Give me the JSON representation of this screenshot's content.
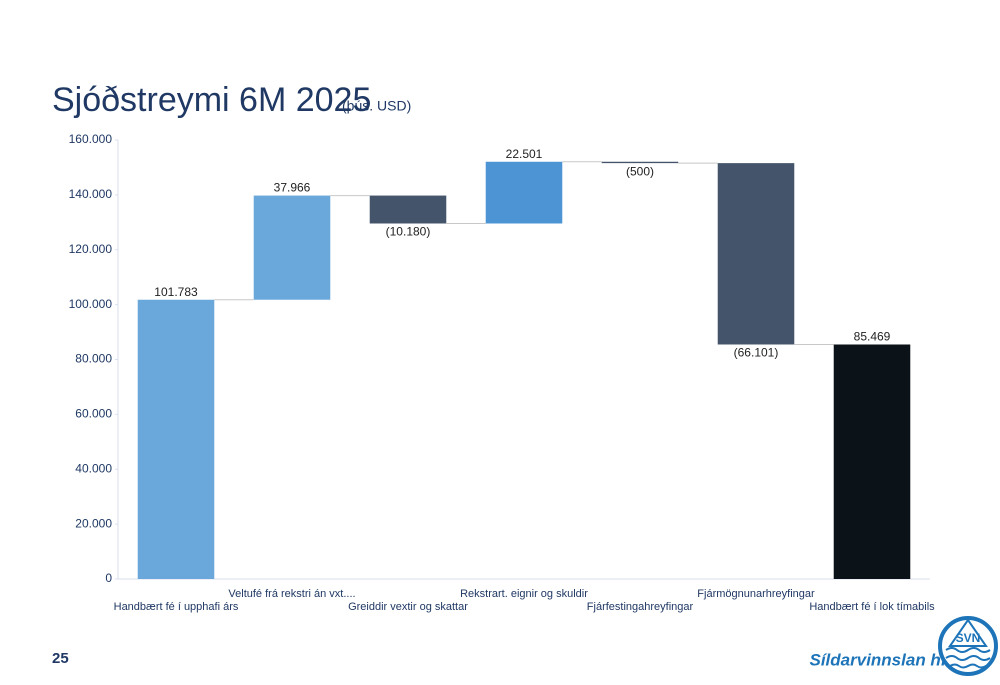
{
  "chart_data": {
    "type": "waterfall",
    "title": "Sjóðstreymi 6M 2025",
    "subtitle": "(þús. USD)",
    "categories": [
      "Handbært fé í upphafi árs",
      "Veltufé frá rekstri án vxt....",
      "Greiddir vextir og skattar",
      "Rekstrart. eignir og skuldir",
      "Fjárfestingahreyfingar",
      "Fjármögnunarhreyfingar",
      "Handbært fé í lok tímabils"
    ],
    "values": [
      101783,
      37966,
      -10180,
      22501,
      -500,
      -66101,
      85469
    ],
    "value_labels": [
      "101.783",
      "37.966",
      "(10.180)",
      "22.501",
      "(500)",
      "(66.101)",
      "85.469"
    ],
    "colors": [
      "#6aa8db",
      "#6aa8db",
      "#44546a",
      "#4d94d4",
      "#44546a",
      "#44546a",
      "#0b1218"
    ],
    "ylim": [
      0,
      160000
    ],
    "yticks": [
      0,
      {
        "value": 20000,
        "label": "20.000"
      },
      {
        "value": 40000,
        "label": "40.000"
      },
      {
        "value": 60000,
        "label": "60.000"
      },
      {
        "value": 80000,
        "label": "80.000"
      },
      {
        "value": 100000,
        "label": "100.000"
      },
      {
        "value": 120000,
        "label": "120.000"
      },
      {
        "value": 140000,
        "label": "140.000"
      },
      {
        "value": 160000,
        "label": "160.000"
      }
    ]
  },
  "page_number": "25",
  "logo": {
    "name": "Síldarvinnslan hf",
    "mark": "SVN"
  }
}
